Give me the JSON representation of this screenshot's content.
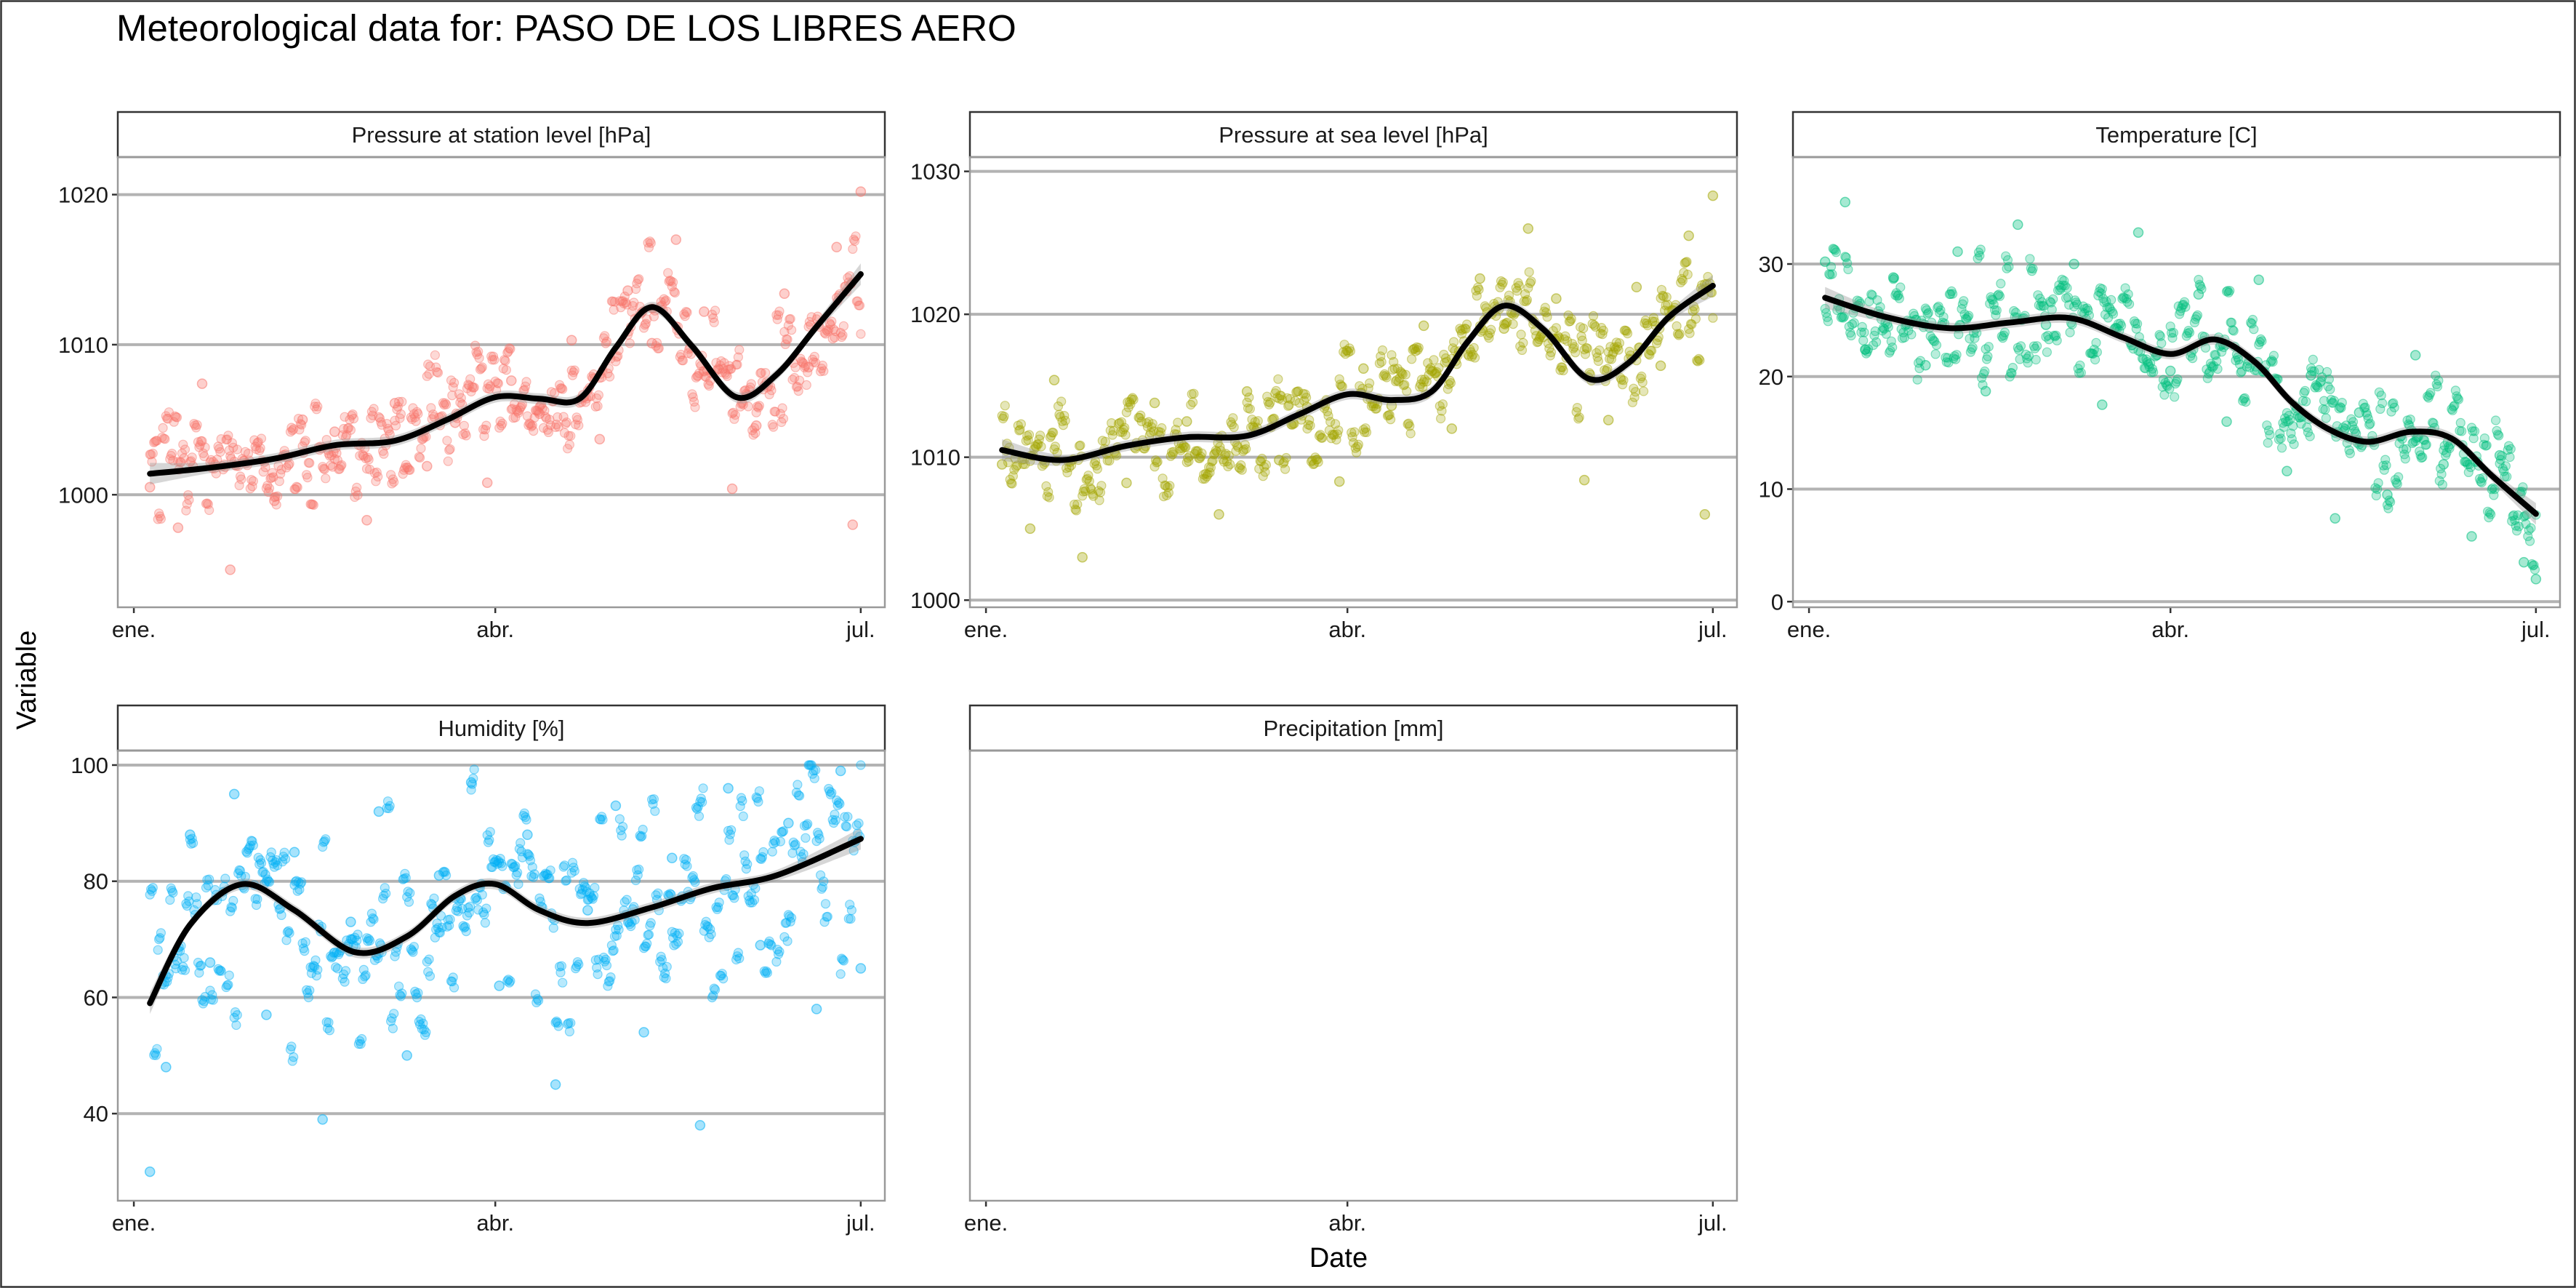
{
  "chart_data": {
    "type": "scatter",
    "title": "Meteorological data for: PASO DE LOS LIBRES AERO",
    "xlabel": "Date",
    "ylabel": "Variable",
    "x_ticks": [
      "ene.",
      "abr.",
      "jul."
    ],
    "x_tick_dates": [
      "2023-01-01",
      "2023-04-01",
      "2023-07-01"
    ],
    "xlim": [
      "2022-12-28",
      "2023-07-07"
    ],
    "grid": true,
    "legend": "none",
    "smoother": "loess curve with grey confidence band",
    "panels": [
      {
        "name": "Pressure at station level [hPa]",
        "color": "#F8766D",
        "ylim": [
          992.5,
          1022.5
        ],
        "y_ticks": [
          1000,
          1010,
          1020
        ],
        "trend": [
          [
            "2023-01-05",
            1001.4
          ],
          [
            "2023-01-20",
            1001.8
          ],
          [
            "2023-02-05",
            1002.4
          ],
          [
            "2023-02-20",
            1003.3
          ],
          [
            "2023-03-07",
            1003.6
          ],
          [
            "2023-03-20",
            1005.0
          ],
          [
            "2023-04-01",
            1006.5
          ],
          [
            "2023-04-12",
            1006.4
          ],
          [
            "2023-04-22",
            1006.4
          ],
          [
            "2023-05-01",
            1009.8
          ],
          [
            "2023-05-10",
            1012.5
          ],
          [
            "2023-05-20",
            1009.9
          ],
          [
            "2023-05-31",
            1006.5
          ],
          [
            "2023-06-10",
            1008.0
          ],
          [
            "2023-06-20",
            1011.2
          ],
          [
            "2023-07-01",
            1014.7
          ]
        ],
        "observations": [
          [
            "2023-01-05",
            1000.5
          ],
          [
            "2023-01-12",
            997.8
          ],
          [
            "2023-01-18",
            1007.4
          ],
          [
            "2023-01-25",
            995.0
          ],
          [
            "2023-02-05",
            999.6
          ],
          [
            "2023-02-12",
            1005.0
          ],
          [
            "2023-02-20",
            1004.2
          ],
          [
            "2023-02-28",
            998.3
          ],
          [
            "2023-03-07",
            1006.1
          ],
          [
            "2023-03-15",
            1001.9
          ],
          [
            "2023-03-22",
            1004.8
          ],
          [
            "2023-03-30",
            1000.8
          ],
          [
            "2023-04-05",
            1007.6
          ],
          [
            "2023-04-12",
            1005.4
          ],
          [
            "2023-04-20",
            1010.3
          ],
          [
            "2023-04-27",
            1003.7
          ],
          [
            "2023-05-04",
            1013.6
          ],
          [
            "2023-05-10",
            1010.1
          ],
          [
            "2023-05-16",
            1017.0
          ],
          [
            "2023-05-23",
            1012.2
          ],
          [
            "2023-05-30",
            1000.4
          ],
          [
            "2023-06-05",
            1004.6
          ],
          [
            "2023-06-12",
            1013.4
          ],
          [
            "2023-06-18",
            1008.5
          ],
          [
            "2023-06-25",
            1016.5
          ],
          [
            "2023-06-29",
            998.0
          ],
          [
            "2023-07-01",
            1020.2
          ]
        ]
      },
      {
        "name": "Pressure at sea level [hPa]",
        "color": "#A3A500",
        "ylim": [
          999.5,
          1031.0
        ],
        "y_ticks": [
          1000,
          1010,
          1020,
          1030
        ],
        "trend": [
          [
            "2023-01-05",
            1010.5
          ],
          [
            "2023-01-20",
            1009.8
          ],
          [
            "2023-02-05",
            1010.8
          ],
          [
            "2023-02-20",
            1011.4
          ],
          [
            "2023-03-07",
            1011.5
          ],
          [
            "2023-03-20",
            1013.0
          ],
          [
            "2023-04-01",
            1014.4
          ],
          [
            "2023-04-12",
            1014.0
          ],
          [
            "2023-04-22",
            1014.6
          ],
          [
            "2023-05-01",
            1018.1
          ],
          [
            "2023-05-10",
            1020.6
          ],
          [
            "2023-05-20",
            1018.9
          ],
          [
            "2023-05-31",
            1015.5
          ],
          [
            "2023-06-10",
            1016.6
          ],
          [
            "2023-06-20",
            1019.8
          ],
          [
            "2023-07-01",
            1022.0
          ]
        ],
        "observations": [
          [
            "2023-01-05",
            1009.5
          ],
          [
            "2023-01-12",
            1005.0
          ],
          [
            "2023-01-18",
            1015.4
          ],
          [
            "2023-01-25",
            1003.0
          ],
          [
            "2023-02-05",
            1008.2
          ],
          [
            "2023-02-12",
            1013.8
          ],
          [
            "2023-02-20",
            1012.5
          ],
          [
            "2023-02-28",
            1006.0
          ],
          [
            "2023-03-07",
            1014.6
          ],
          [
            "2023-03-15",
            1009.8
          ],
          [
            "2023-03-22",
            1013.5
          ],
          [
            "2023-03-30",
            1008.3
          ],
          [
            "2023-04-05",
            1016.2
          ],
          [
            "2023-04-12",
            1013.6
          ],
          [
            "2023-04-20",
            1019.2
          ],
          [
            "2023-04-27",
            1012.0
          ],
          [
            "2023-05-04",
            1022.5
          ],
          [
            "2023-05-10",
            1019.0
          ],
          [
            "2023-05-16",
            1026.0
          ],
          [
            "2023-05-23",
            1021.1
          ],
          [
            "2023-05-30",
            1008.4
          ],
          [
            "2023-06-05",
            1012.6
          ],
          [
            "2023-06-12",
            1021.9
          ],
          [
            "2023-06-18",
            1016.4
          ],
          [
            "2023-06-25",
            1025.5
          ],
          [
            "2023-06-29",
            1006.0
          ],
          [
            "2023-07-01",
            1028.3
          ]
        ]
      },
      {
        "name": "Temperature [C]",
        "color": "#00BF7D",
        "ylim": [
          -0.5,
          39.5
        ],
        "y_ticks": [
          0,
          10,
          20,
          30
        ],
        "trend": [
          [
            "2023-01-05",
            27.0
          ],
          [
            "2023-01-20",
            25.3
          ],
          [
            "2023-02-05",
            24.3
          ],
          [
            "2023-02-20",
            24.8
          ],
          [
            "2023-03-07",
            25.2
          ],
          [
            "2023-03-20",
            23.5
          ],
          [
            "2023-04-01",
            22.0
          ],
          [
            "2023-04-12",
            23.3
          ],
          [
            "2023-04-22",
            21.3
          ],
          [
            "2023-05-01",
            17.8
          ],
          [
            "2023-05-10",
            15.4
          ],
          [
            "2023-05-20",
            14.2
          ],
          [
            "2023-05-31",
            15.1
          ],
          [
            "2023-06-10",
            14.5
          ],
          [
            "2023-06-20",
            11.2
          ],
          [
            "2023-07-01",
            7.8
          ]
        ],
        "observations": [
          [
            "2023-01-05",
            30.2
          ],
          [
            "2023-01-10",
            35.5
          ],
          [
            "2023-01-15",
            22.4
          ],
          [
            "2023-01-22",
            28.8
          ],
          [
            "2023-01-30",
            21.0
          ],
          [
            "2023-02-07",
            31.1
          ],
          [
            "2023-02-14",
            18.7
          ],
          [
            "2023-02-22",
            33.5
          ],
          [
            "2023-03-01",
            24.6
          ],
          [
            "2023-03-08",
            30.0
          ],
          [
            "2023-03-15",
            17.5
          ],
          [
            "2023-03-24",
            32.8
          ],
          [
            "2023-04-01",
            20.5
          ],
          [
            "2023-04-08",
            27.3
          ],
          [
            "2023-04-15",
            16.0
          ],
          [
            "2023-04-23",
            28.6
          ],
          [
            "2023-04-30",
            11.6
          ],
          [
            "2023-05-06",
            20.1
          ],
          [
            "2023-05-12",
            7.4
          ],
          [
            "2023-05-18",
            16.8
          ],
          [
            "2023-05-25",
            9.5
          ],
          [
            "2023-06-01",
            21.9
          ],
          [
            "2023-06-08",
            12.2
          ],
          [
            "2023-06-15",
            5.8
          ],
          [
            "2023-06-22",
            13.0
          ],
          [
            "2023-06-28",
            3.5
          ],
          [
            "2023-07-01",
            2.0
          ]
        ]
      },
      {
        "name": "Humidity [%]",
        "color": "#00B0F6",
        "ylim": [
          25.0,
          102.5
        ],
        "y_ticks": [
          40,
          60,
          80,
          100
        ],
        "trend": [
          [
            "2023-01-05",
            59.0
          ],
          [
            "2023-01-15",
            72.5
          ],
          [
            "2023-01-28",
            79.5
          ],
          [
            "2023-02-10",
            75.0
          ],
          [
            "2023-02-25",
            67.8
          ],
          [
            "2023-03-10",
            70.5
          ],
          [
            "2023-03-22",
            77.5
          ],
          [
            "2023-04-01",
            79.5
          ],
          [
            "2023-04-12",
            75.0
          ],
          [
            "2023-04-24",
            72.8
          ],
          [
            "2023-05-10",
            75.5
          ],
          [
            "2023-05-25",
            78.8
          ],
          [
            "2023-06-10",
            81.0
          ],
          [
            "2023-07-01",
            87.3
          ]
        ],
        "observations": [
          [
            "2023-01-05",
            30.0
          ],
          [
            "2023-01-09",
            48.0
          ],
          [
            "2023-01-15",
            88.0
          ],
          [
            "2023-01-20",
            66.0
          ],
          [
            "2023-01-26",
            95.0
          ],
          [
            "2023-02-03",
            57.0
          ],
          [
            "2023-02-10",
            85.0
          ],
          [
            "2023-02-17",
            39.0
          ],
          [
            "2023-02-24",
            73.0
          ],
          [
            "2023-03-03",
            92.0
          ],
          [
            "2023-03-10",
            50.0
          ],
          [
            "2023-03-18",
            81.0
          ],
          [
            "2023-03-26",
            97.0
          ],
          [
            "2023-04-02",
            62.0
          ],
          [
            "2023-04-09",
            88.0
          ],
          [
            "2023-04-16",
            45.0
          ],
          [
            "2023-04-24",
            75.0
          ],
          [
            "2023-05-01",
            93.0
          ],
          [
            "2023-05-08",
            54.0
          ],
          [
            "2023-05-15",
            84.0
          ],
          [
            "2023-05-22",
            38.0
          ],
          [
            "2023-05-29",
            96.0
          ],
          [
            "2023-06-06",
            69.0
          ],
          [
            "2023-06-13",
            90.0
          ],
          [
            "2023-06-20",
            58.0
          ],
          [
            "2023-06-26",
            99.0
          ],
          [
            "2023-07-01",
            65.0
          ]
        ]
      },
      {
        "name": "Precipitation [mm]",
        "color": "#E76BF3",
        "y_ticks": [],
        "trend": [],
        "observations": []
      }
    ]
  }
}
